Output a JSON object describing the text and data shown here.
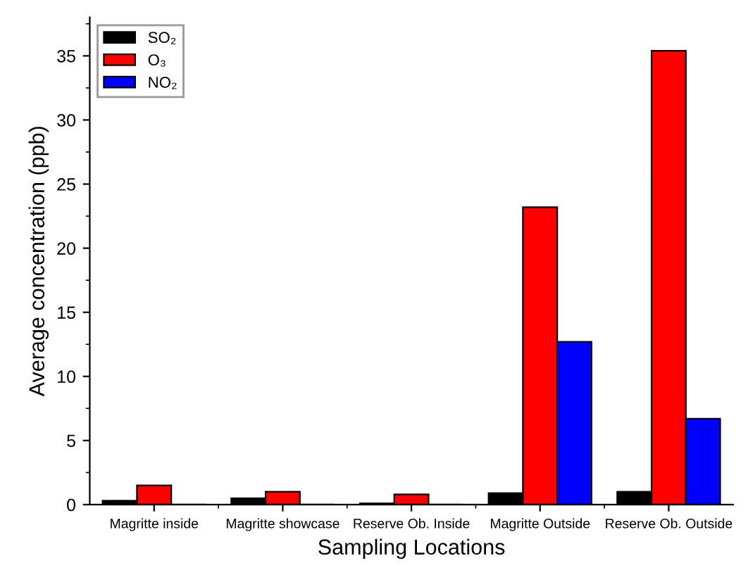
{
  "chart_data": {
    "type": "bar",
    "xlabel": "Sampling Locations",
    "ylabel": "Average concentration (ppb)",
    "categories": [
      "Magritte inside",
      "Magritte showcase",
      "Reserve Ob. Inside",
      "Magritte Outside",
      "Reserve Ob. Outside"
    ],
    "series": [
      {
        "name": "SO₂",
        "color": "#000000",
        "values": [
          0.3,
          0.5,
          0.1,
          0.9,
          1.0
        ]
      },
      {
        "name": "O₃",
        "color": "#ff0000",
        "values": [
          1.5,
          1.0,
          0.8,
          23.2,
          35.4
        ]
      },
      {
        "name": "NO₂",
        "color": "#0000ff",
        "values": [
          0,
          0,
          0,
          12.7,
          6.7
        ]
      }
    ],
    "ylim": [
      0,
      38
    ],
    "yticks": [
      0,
      5,
      10,
      15,
      20,
      25,
      30,
      35
    ],
    "grid": false,
    "legend": "top left"
  }
}
